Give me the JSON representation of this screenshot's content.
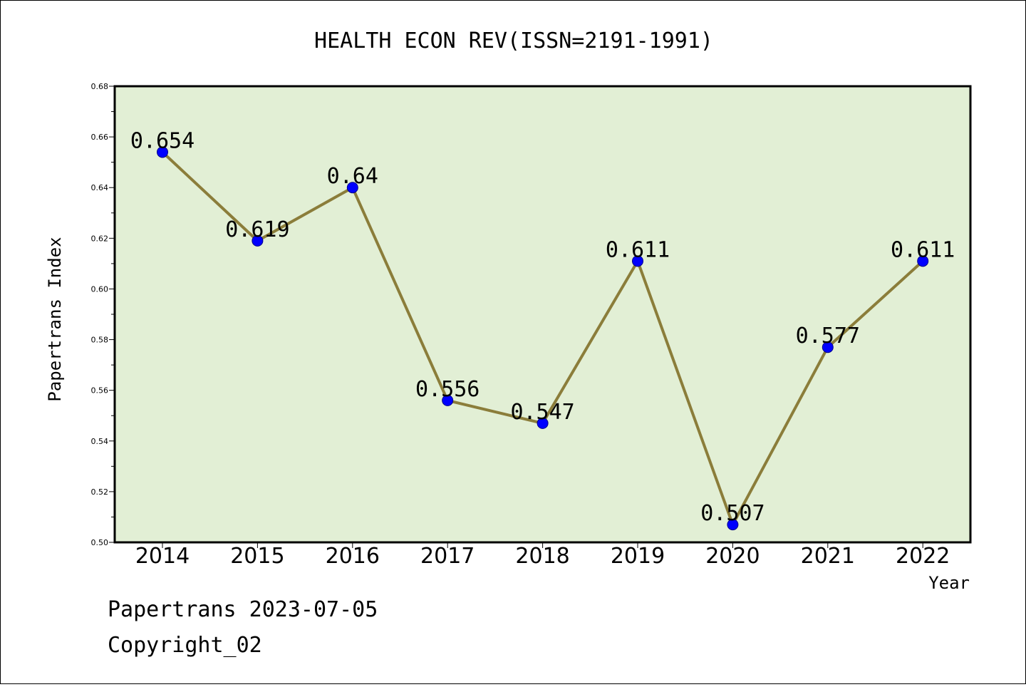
{
  "chart_data": {
    "type": "line",
    "title": "HEALTH ECON REV(ISSN=2191-1991)",
    "xlabel": "Year",
    "ylabel": "Papertrans Index",
    "x": [
      "2014",
      "2015",
      "2016",
      "2017",
      "2018",
      "2019",
      "2020",
      "2021",
      "2022"
    ],
    "series": [
      {
        "values": [
          0.654,
          0.619,
          0.64,
          0.556,
          0.547,
          0.611,
          0.507,
          0.577,
          0.611
        ],
        "labels": [
          "0.654",
          "0.619",
          "0.64",
          "0.556",
          "0.547",
          "0.611",
          "0.507",
          "0.577",
          "0.611"
        ]
      }
    ],
    "ylim": [
      0.5,
      0.68
    ],
    "yticks": [
      "0.50",
      "0.52",
      "0.54",
      "0.56",
      "0.58",
      "0.60",
      "0.62",
      "0.64",
      "0.66",
      "0.68"
    ],
    "grid": false,
    "colors": {
      "plot_background": "#e2efd5",
      "line": "#8b7d3a",
      "marker": "#0000ff"
    }
  },
  "footer": {
    "line1": "Papertrans 2023-07-05",
    "line2": "Copyright_02"
  }
}
